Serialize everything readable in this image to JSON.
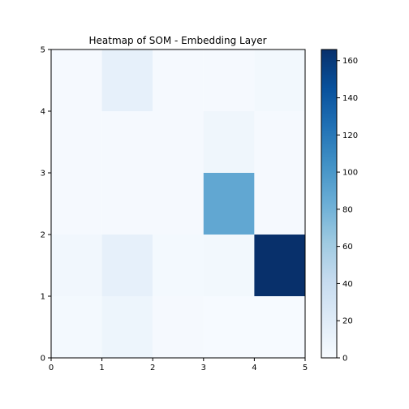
{
  "chart_data": {
    "type": "heatmap",
    "title": "Heatmap of SOM - Embedding Layer",
    "xlabel": "",
    "ylabel": "",
    "xlim": [
      0,
      5
    ],
    "ylim": [
      0,
      5
    ],
    "xticks": [
      "0",
      "1",
      "2",
      "3",
      "4",
      "5"
    ],
    "yticks": [
      "0",
      "1",
      "2",
      "3",
      "4",
      "5"
    ],
    "grid": false,
    "colormap": "Blues",
    "colorbar": {
      "range": [
        0,
        166
      ],
      "ticks": [
        "0",
        "20",
        "40",
        "60",
        "80",
        "100",
        "120",
        "140",
        "160"
      ]
    },
    "values_by_row_from_bottom": [
      [
        3,
        8,
        2,
        1,
        1
      ],
      [
        5,
        14,
        3,
        4,
        166
      ],
      [
        2,
        2,
        2,
        88,
        2
      ],
      [
        2,
        2,
        2,
        7,
        2
      ],
      [
        2,
        14,
        2,
        2,
        4
      ]
    ]
  }
}
